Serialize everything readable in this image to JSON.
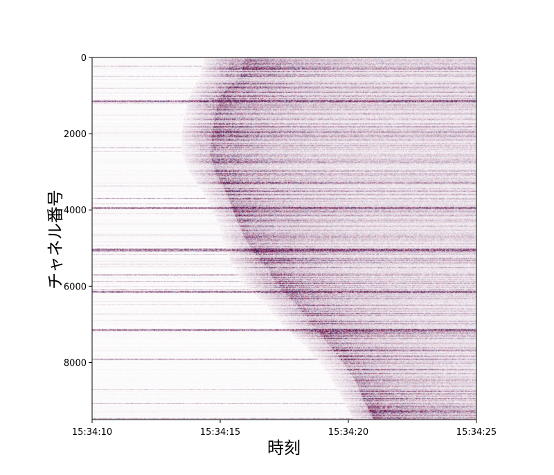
{
  "chart_data": {
    "type": "heatmap",
    "title": "",
    "xlabel": "時刻",
    "ylabel": "チャネル番号",
    "x_ticks": [
      "15:34:10",
      "15:34:15",
      "15:34:20",
      "15:34:25"
    ],
    "x_tick_seconds": [
      10,
      15,
      20,
      25
    ],
    "xlim_seconds": [
      10,
      25
    ],
    "y_ticks": [
      "0",
      "2000",
      "4000",
      "6000",
      "8000"
    ],
    "y_tick_values": [
      0,
      2000,
      4000,
      6000,
      8000
    ],
    "ylim": [
      0,
      9500
    ],
    "y_inverted": true,
    "grid": false,
    "colormap": "seismic (diverging: blue–white–red), shown mostly as purple on white",
    "colors": {
      "strong": "#5a1a4a",
      "positive": "#b0205a",
      "negative": "#2a2f8a",
      "background": "#ffffff"
    },
    "wavefront_arrival": {
      "description": "first-arrival time of the seismic wavefront per channel",
      "channel": [
        0,
        500,
        1000,
        1500,
        2000,
        2500,
        3000,
        3500,
        4000,
        4500,
        5000,
        5500,
        6000,
        6500,
        7000,
        7500,
        8000,
        8500,
        9000,
        9500
      ],
      "time_seconds": [
        14.4,
        14.2,
        13.8,
        13.6,
        13.5,
        13.5,
        13.8,
        14.3,
        14.7,
        15.0,
        15.2,
        15.5,
        16.0,
        16.8,
        17.4,
        18.2,
        18.9,
        19.4,
        19.8,
        20.2
      ]
    },
    "dark_zone_front": {
      "description": "onset time of the strongest (dark) energy band per channel",
      "channel": [
        0,
        500,
        1000,
        1500,
        2000,
        2500,
        3000,
        3500,
        4000,
        4500,
        5000,
        5500,
        6000,
        6500,
        7000,
        7500,
        8000,
        8500,
        9000,
        9500
      ],
      "time_seconds": [
        16.0,
        15.8,
        15.0,
        14.8,
        14.7,
        14.6,
        14.8,
        15.2,
        15.5,
        15.8,
        16.2,
        16.8,
        17.3,
        18.0,
        18.6,
        19.2,
        19.8,
        20.3,
        20.6,
        21.0
      ]
    },
    "strong_horizontal_bands": [
      1150,
      3950,
      5050,
      6150,
      7150
    ]
  }
}
